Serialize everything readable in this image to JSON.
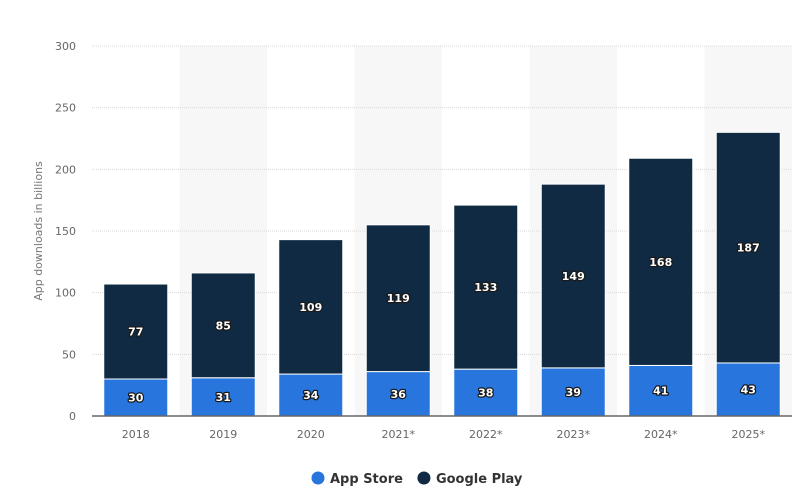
{
  "chart_data": {
    "type": "bar",
    "stacked": true,
    "title": "",
    "xlabel": "",
    "ylabel": "App downloads in billions",
    "ylim": [
      0,
      300
    ],
    "yticks": [
      0,
      50,
      100,
      150,
      200,
      250,
      300
    ],
    "grid": true,
    "legend_position": "bottom",
    "categories": [
      "2018",
      "2019",
      "2020",
      "2021*",
      "2022*",
      "2023*",
      "2024*",
      "2025*"
    ],
    "series": [
      {
        "name": "App Store",
        "color": "#2876dd",
        "values": [
          30,
          31,
          34,
          36,
          38,
          39,
          41,
          43
        ]
      },
      {
        "name": "Google Play",
        "color": "#0f2a42",
        "values": [
          77,
          85,
          109,
          119,
          133,
          149,
          168,
          187
        ]
      }
    ]
  }
}
